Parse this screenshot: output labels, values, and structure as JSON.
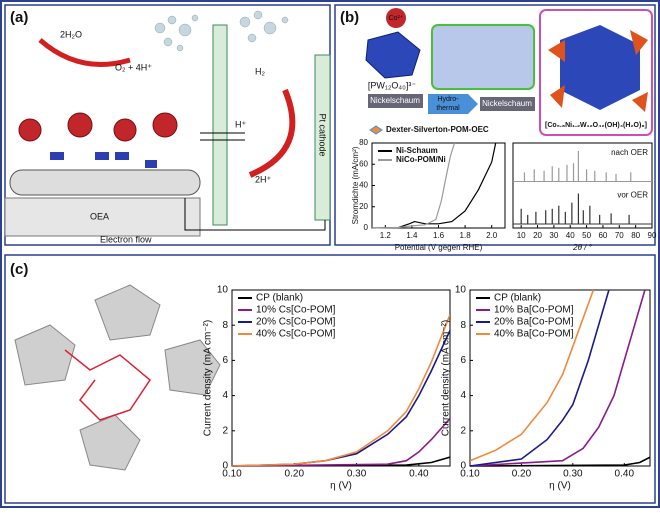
{
  "panels": {
    "a": {
      "label": "(a)",
      "water": "2H₂O",
      "oxygen": "O₂ + 4H⁺",
      "hydrogen": "H₂",
      "proton": "H⁺",
      "protons": "2H⁺",
      "cathode": "Pt cathode",
      "anode": "OEA",
      "electron_flow": "Electron flow"
    },
    "b": {
      "label": "(b)",
      "cobalt": "Co²⁺",
      "pom": "[PW₁₂O₄₀]³⁻",
      "foam_1": "Nickelschaum",
      "hydrothermal": [
        "Hydro-",
        "thermal"
      ],
      "foam_2": "Nickelschaum",
      "legend": "Dexter-Silverton-POM-OEC",
      "product": "[Co₆.₈Ni₁.₂W₁₂O₄₂(OH)₄(H₂O)₈]"
    },
    "c": {
      "label": "(c)"
    }
  },
  "chart_data": [
    {
      "type": "line",
      "x_label": "Potential (V gegen RHE)",
      "y_label": "Stromdichte (mA/cm²)",
      "legend": "upper left",
      "xlim": [
        1.1,
        2.1
      ],
      "xticks": [
        1.2,
        1.4,
        1.6,
        1.8,
        {
          "value": 2,
          "label": "2.0"
        }
      ],
      "ylim": [
        0,
        80
      ],
      "yticks": [
        0,
        20,
        40,
        60,
        80
      ],
      "series": [
        {
          "name": "Ni-Schaum",
          "color": "#000000",
          "x": [
            1.1,
            1.3,
            1.38,
            1.42,
            1.5,
            1.6,
            1.7,
            1.8,
            1.9,
            2.0,
            2.03
          ],
          "values": [
            0,
            0.5,
            4,
            6,
            4,
            4,
            6,
            16,
            36,
            62,
            80
          ]
        },
        {
          "name": "NiCo-POM/Ni",
          "color": "#9a9a9a",
          "x": [
            1.1,
            1.3,
            1.4,
            1.5,
            1.58,
            1.62,
            1.66,
            1.69,
            1.72
          ],
          "values": [
            0,
            0.5,
            2,
            3,
            8,
            25,
            50,
            68,
            80
          ]
        }
      ]
    },
    {
      "type": "stick",
      "x_label": "2θ / °",
      "xlim": [
        5,
        90
      ],
      "xticks": [
        10,
        20,
        30,
        40,
        50,
        60,
        70,
        80,
        90
      ],
      "series": [
        {
          "name": "nach OER",
          "color": "#9a9a9a",
          "x": [
            12,
            18,
            24,
            29,
            33,
            38,
            42,
            45,
            50,
            55,
            62,
            68,
            77
          ],
          "values": [
            0.3,
            0.4,
            0.35,
            0.5,
            0.45,
            0.55,
            0.6,
            1,
            0.4,
            0.35,
            0.3,
            0.25,
            0.3
          ]
        },
        {
          "name": "vor OER",
          "color": "#333333",
          "x": [
            10,
            14,
            19,
            25,
            29,
            33,
            37,
            41,
            45,
            48,
            52,
            58,
            65,
            76
          ],
          "values": [
            0.5,
            0.3,
            0.4,
            0.45,
            0.5,
            0.6,
            0.4,
            0.7,
            1,
            0.45,
            0.6,
            0.3,
            0.35,
            0.3
          ]
        }
      ]
    },
    {
      "type": "line",
      "x_label": "η (V)",
      "y_label": "Current density (mA cm⁻²)",
      "legend": "upper left",
      "xlim": [
        0.1,
        0.45
      ],
      "xticks": [
        {
          "value": 0.1,
          "label": "0.10"
        },
        {
          "value": 0.2,
          "label": "0.20"
        },
        {
          "value": 0.3,
          "label": "0.30"
        },
        {
          "value": 0.4,
          "label": "0.40"
        }
      ],
      "ylim": [
        0,
        10
      ],
      "yticks": [
        0,
        2,
        4,
        6,
        8,
        10
      ],
      "series": [
        {
          "name": "CP (blank)",
          "color": "#000000",
          "x": [
            0.1,
            0.38,
            0.42,
            0.45
          ],
          "values": [
            0,
            0.05,
            0.2,
            0.5
          ]
        },
        {
          "name": "10% Cs[Co-POM]",
          "color": "#8b1a8b",
          "x": [
            0.1,
            0.35,
            0.38,
            0.4,
            0.42,
            0.45
          ],
          "values": [
            0,
            0.1,
            0.3,
            0.8,
            1.5,
            2.7
          ]
        },
        {
          "name": "20% Cs[Co-POM]",
          "color": "#1a1a8c",
          "x": [
            0.1,
            0.2,
            0.25,
            0.3,
            0.35,
            0.38,
            0.4,
            0.42,
            0.45
          ],
          "values": [
            0,
            0.1,
            0.3,
            0.7,
            1.8,
            2.8,
            4,
            5.4,
            7.7
          ]
        },
        {
          "name": "40% Cs[Co-POM]",
          "color": "#f08a3c",
          "x": [
            0.1,
            0.2,
            0.25,
            0.3,
            0.35,
            0.38,
            0.4,
            0.42,
            0.45
          ],
          "values": [
            0,
            0.1,
            0.3,
            0.8,
            2,
            3.1,
            4.4,
            5.9,
            8.6
          ]
        }
      ]
    },
    {
      "type": "line",
      "x_label": "η (V)",
      "y_label": "Current density (mA cm⁻²)",
      "legend": "upper left",
      "xlim": [
        0.1,
        0.45
      ],
      "xticks": [
        {
          "value": 0.1,
          "label": "0.10"
        },
        {
          "value": 0.2,
          "label": "0.20"
        },
        {
          "value": 0.3,
          "label": "0.30"
        },
        {
          "value": 0.4,
          "label": "0.40"
        }
      ],
      "ylim": [
        0,
        10
      ],
      "yticks": [
        0,
        2,
        4,
        6,
        8,
        10
      ],
      "series": [
        {
          "name": "CP (blank)",
          "color": "#000000",
          "x": [
            0.1,
            0.4,
            0.43,
            0.45
          ],
          "values": [
            0,
            0.05,
            0.2,
            0.5
          ]
        },
        {
          "name": "10% Ba[Co-POM]",
          "color": "#8b1a8b",
          "x": [
            0.1,
            0.28,
            0.32,
            0.35,
            0.38,
            0.4,
            0.42,
            0.44
          ],
          "values": [
            0,
            0.3,
            1,
            2.2,
            4,
            6,
            8,
            10
          ]
        },
        {
          "name": "20% Ba[Co-POM]",
          "color": "#1a1a8c",
          "x": [
            0.1,
            0.2,
            0.25,
            0.28,
            0.3,
            0.33,
            0.35,
            0.37
          ],
          "values": [
            0,
            0.4,
            1.5,
            2.6,
            3.5,
            6,
            8,
            10
          ]
        },
        {
          "name": "40% Ba[Co-POM]",
          "color": "#f08a3c",
          "x": [
            0.1,
            0.15,
            0.2,
            0.25,
            0.28,
            0.3,
            0.32,
            0.34
          ],
          "values": [
            0.3,
            0.9,
            1.8,
            3.6,
            5.2,
            6.8,
            8.4,
            10
          ]
        }
      ]
    }
  ]
}
